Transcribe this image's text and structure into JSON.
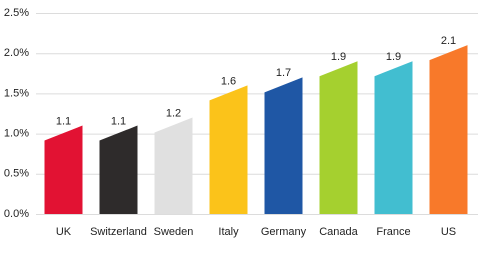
{
  "chart_data": {
    "type": "bar",
    "categories": [
      "UK",
      "Switzerland",
      "Sweden",
      "Italy",
      "Germany",
      "Canada",
      "France",
      "US"
    ],
    "values": [
      1.1,
      1.1,
      1.2,
      1.6,
      1.7,
      1.9,
      1.9,
      2.1
    ],
    "colors": [
      "#e21233",
      "#2e2b2b",
      "#e0e0e0",
      "#fbc31a",
      "#1f57a5",
      "#a5d02f",
      "#42bed0",
      "#f8792a"
    ],
    "ylim": [
      0,
      2.5
    ],
    "yticks": [
      {
        "value": 0,
        "label": "0.0%"
      },
      {
        "value": 0.5,
        "label": "0.5%"
      },
      {
        "value": 1,
        "label": "1.0%"
      },
      {
        "value": 1.5,
        "label": "1.5%"
      },
      {
        "value": 2,
        "label": "2.0%"
      },
      {
        "value": 2.5,
        "label": "2.5%"
      }
    ],
    "grid": true
  }
}
